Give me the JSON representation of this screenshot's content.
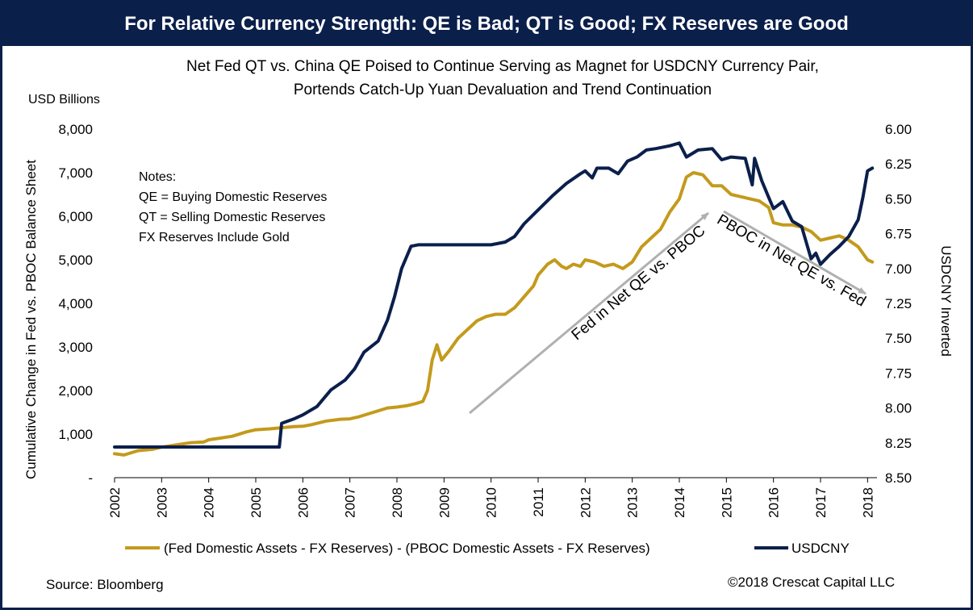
{
  "banner": "For Relative Currency Strength: QE is Bad; QT is Good; FX Reserves are Good",
  "subtitle": [
    "Net Fed QT vs. China QE Poised to Continue Serving as Magnet for USDCNY Currency Pair,",
    "Portends Catch-Up Yuan Devaluation and Trend Continuation"
  ],
  "y_unit_label": "USD Billions",
  "notes": [
    "Notes:",
    "QE = Buying Domestic Reserves",
    "QT = Selling Domestic Reserves",
    "FX Reserves Include Gold"
  ],
  "source": "Source: Bloomberg",
  "copyright": "©2018 Crescat Capital LLC",
  "colors": {
    "banner": "#0b1f4b",
    "gold": "#c49a1c",
    "navy": "#0b1f4b",
    "arrow": "#b0b0b0"
  },
  "chart_data": {
    "type": "line",
    "title": "Net Fed QT vs. China QE Poised to Continue Serving as Magnet for USDCNY Currency Pair, Portends Catch-Up Yuan Devaluation and Trend Continuation",
    "ylabel": "Cumulative Change in Fed vs. PBOC Balance Sheet",
    "y2label": "USDCNY Inverted",
    "xlim": [
      2002,
      2018.2
    ],
    "ylim": [
      0,
      8000
    ],
    "y2lim": [
      8.5,
      6.0
    ],
    "y2_inverted": true,
    "x_ticks": [
      "2002",
      "2003",
      "2004",
      "2005",
      "2006",
      "2007",
      "2008",
      "2009",
      "2010",
      "2011",
      "2012",
      "2013",
      "2014",
      "2015",
      "2016",
      "2017",
      "2018"
    ],
    "y_ticks": [
      "-",
      "1,000",
      "2,000",
      "3,000",
      "4,000",
      "5,000",
      "6,000",
      "7,000",
      "8,000"
    ],
    "y2_ticks": [
      "8.50",
      "8.25",
      "8.00",
      "7.75",
      "7.50",
      "7.25",
      "7.00",
      "6.75",
      "6.50",
      "6.25",
      "6.00"
    ],
    "grid": false,
    "legend_position": "bottom",
    "annotations": [
      "Fed in Net QE vs. PBOC",
      "PBOC in Net QE vs. Fed"
    ],
    "series": [
      {
        "name": "(Fed Domestic Assets - FX Reserves) - (PBOC Domestic Assets - FX Reserves)",
        "axis": "left",
        "x": [
          2002.0,
          2002.2,
          2002.5,
          2002.8,
          2003.0,
          2003.3,
          2003.6,
          2003.9,
          2004.0,
          2004.2,
          2004.5,
          2004.8,
          2005.0,
          2005.3,
          2005.5,
          2005.8,
          2006.0,
          2006.2,
          2006.5,
          2006.8,
          2007.0,
          2007.2,
          2007.5,
          2007.8,
          2008.0,
          2008.2,
          2008.4,
          2008.55,
          2008.65,
          2008.75,
          2008.85,
          2008.95,
          2009.1,
          2009.3,
          2009.5,
          2009.7,
          2009.9,
          2010.1,
          2010.3,
          2010.5,
          2010.7,
          2010.9,
          2011.0,
          2011.2,
          2011.35,
          2011.5,
          2011.6,
          2011.75,
          2011.9,
          2012.0,
          2012.2,
          2012.4,
          2012.6,
          2012.8,
          2013.0,
          2013.2,
          2013.4,
          2013.6,
          2013.8,
          2014.0,
          2014.15,
          2014.3,
          2014.5,
          2014.7,
          2014.9,
          2015.1,
          2015.3,
          2015.5,
          2015.7,
          2015.9,
          2016.0,
          2016.2,
          2016.4,
          2016.6,
          2016.8,
          2017.0,
          2017.2,
          2017.4,
          2017.6,
          2017.8,
          2018.0,
          2018.1
        ],
        "values": [
          550,
          520,
          620,
          650,
          700,
          750,
          800,
          820,
          870,
          900,
          950,
          1050,
          1100,
          1120,
          1140,
          1170,
          1180,
          1220,
          1300,
          1340,
          1350,
          1400,
          1500,
          1600,
          1620,
          1650,
          1700,
          1750,
          2000,
          2700,
          3050,
          2700,
          2900,
          3200,
          3400,
          3600,
          3700,
          3750,
          3750,
          3900,
          4150,
          4400,
          4650,
          4900,
          5000,
          4850,
          4800,
          4900,
          4850,
          5000,
          4950,
          4850,
          4900,
          4800,
          4950,
          5300,
          5500,
          5700,
          6100,
          6400,
          6900,
          7000,
          6950,
          6700,
          6700,
          6500,
          6450,
          6400,
          6350,
          6200,
          5850,
          5800,
          5800,
          5750,
          5650,
          5450,
          5500,
          5550,
          5450,
          5300,
          5000,
          4950
        ]
      },
      {
        "name": "USDCNY",
        "axis": "right",
        "x": [
          2002.0,
          2005.5,
          2005.55,
          2005.8,
          2006.0,
          2006.3,
          2006.6,
          2006.9,
          2007.1,
          2007.3,
          2007.6,
          2007.8,
          2007.95,
          2008.1,
          2008.3,
          2008.45,
          2008.7,
          2009.0,
          2009.5,
          2010.0,
          2010.3,
          2010.5,
          2010.7,
          2011.0,
          2011.3,
          2011.6,
          2011.9,
          2012.0,
          2012.15,
          2012.25,
          2012.5,
          2012.7,
          2012.9,
          2013.1,
          2013.3,
          2013.5,
          2013.8,
          2014.0,
          2014.15,
          2014.4,
          2014.7,
          2014.9,
          2015.1,
          2015.4,
          2015.55,
          2015.6,
          2015.75,
          2015.9,
          2016.0,
          2016.2,
          2016.4,
          2016.6,
          2016.8,
          2016.9,
          2017.0,
          2017.2,
          2017.4,
          2017.6,
          2017.8,
          2017.9,
          2018.0,
          2018.1
        ],
        "values": [
          8.28,
          8.28,
          8.11,
          8.08,
          8.05,
          7.99,
          7.87,
          7.8,
          7.72,
          7.6,
          7.52,
          7.37,
          7.2,
          7.0,
          6.84,
          6.83,
          6.83,
          6.83,
          6.83,
          6.83,
          6.81,
          6.77,
          6.68,
          6.58,
          6.48,
          6.39,
          6.32,
          6.3,
          6.35,
          6.28,
          6.28,
          6.32,
          6.23,
          6.2,
          6.15,
          6.14,
          6.12,
          6.1,
          6.2,
          6.15,
          6.14,
          6.22,
          6.2,
          6.21,
          6.4,
          6.21,
          6.37,
          6.49,
          6.57,
          6.52,
          6.66,
          6.7,
          6.93,
          6.89,
          6.97,
          6.9,
          6.84,
          6.77,
          6.65,
          6.49,
          6.3,
          6.28
        ]
      }
    ]
  }
}
